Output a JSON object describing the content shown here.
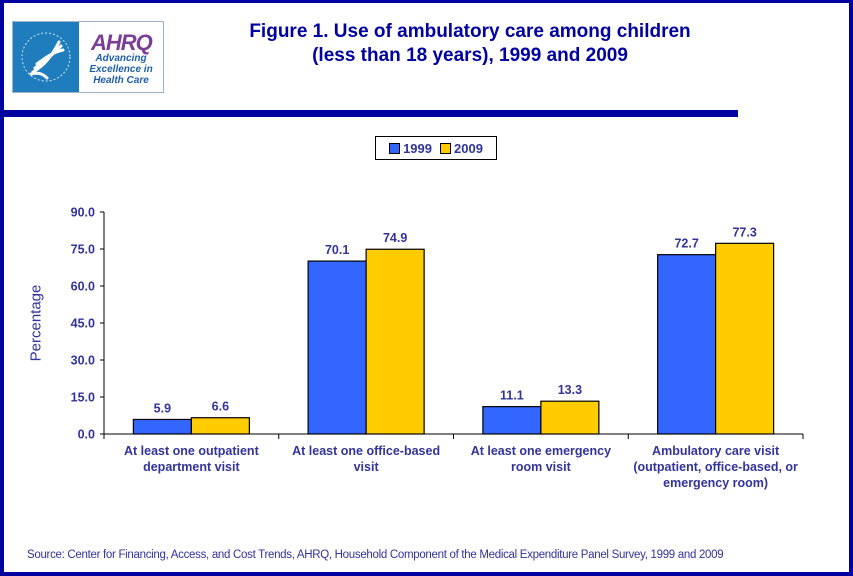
{
  "header": {
    "title_line1": "Figure 1. Use of ambulatory care among children",
    "title_line2": "(less than 18 years), 1999 and 2009",
    "logo": {
      "agency_seal": "hhs-eagle-seal",
      "brand": "AHRQ",
      "tagline_line1": "Advancing",
      "tagline_line2": "Excellence in",
      "tagline_line3": "Health Care"
    }
  },
  "colors": {
    "frame": "#0000a0",
    "text": "#333399",
    "series_1999": "#3366ff",
    "series_2009": "#ffcc00"
  },
  "footer": {
    "source": "Source: Center for Financing, Access, and Cost Trends, AHRQ, Household Component of the Medical Expenditure Panel Survey,  1999 and 2009"
  },
  "chart_data": {
    "type": "bar",
    "title": "Figure 1. Use of ambulatory care among children (less than 18 years), 1999 and 2009",
    "xlabel": "",
    "ylabel": "Percentage",
    "ylim": [
      0,
      90
    ],
    "yticks": [
      "0.0",
      "15.0",
      "30.0",
      "45.0",
      "60.0",
      "75.0",
      "90.0"
    ],
    "ytick_values": [
      0,
      15,
      30,
      45,
      60,
      75,
      90
    ],
    "grid": false,
    "legend": {
      "placement": "top-center",
      "entries": [
        "1999",
        "2009"
      ]
    },
    "categories": [
      [
        "At least one outpatient",
        "department visit"
      ],
      [
        "At least one office-based",
        "visit"
      ],
      [
        "At least one emergency",
        "room visit"
      ],
      [
        "Ambulatory care visit",
        "(outpatient, office-based, or",
        "emergency room)"
      ]
    ],
    "series": [
      {
        "name": "1999",
        "color": "#3366ff",
        "values": [
          5.9,
          70.1,
          11.1,
          72.7
        ],
        "labels": [
          "5.9",
          "70.1",
          "11.1",
          "72.7"
        ]
      },
      {
        "name": "2009",
        "color": "#ffcc00",
        "values": [
          6.6,
          74.9,
          13.3,
          77.3
        ],
        "labels": [
          "6.6",
          "74.9",
          "13.3",
          "77.3"
        ]
      }
    ]
  }
}
